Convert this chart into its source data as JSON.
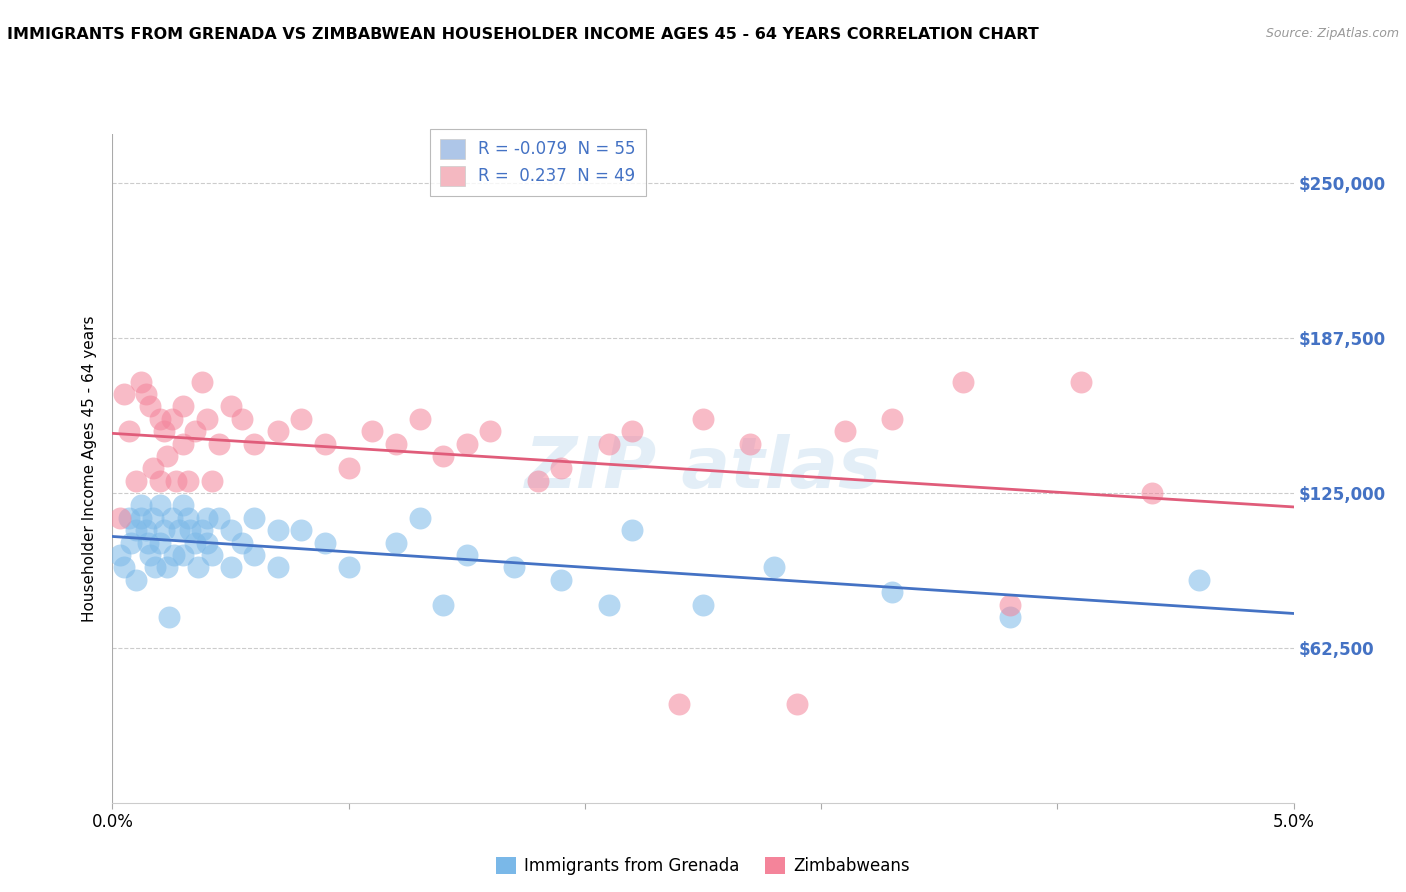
{
  "title": "IMMIGRANTS FROM GRENADA VS ZIMBABWEAN HOUSEHOLDER INCOME AGES 45 - 64 YEARS CORRELATION CHART",
  "source": "Source: ZipAtlas.com",
  "ylabel": "Householder Income Ages 45 - 64 years",
  "yticks": [
    62500,
    125000,
    187500,
    250000
  ],
  "ytick_labels": [
    "$62,500",
    "$125,000",
    "$187,500",
    "$250,000"
  ],
  "legend_entries": [
    {
      "label": "R = -0.079  N = 55",
      "color": "#aec6e8"
    },
    {
      "label": "R =  0.237  N = 49",
      "color": "#f4b8c1"
    }
  ],
  "bottom_legend": [
    "Immigrants from Grenada",
    "Zimbabweans"
  ],
  "blue_color": "#7ab8e8",
  "pink_color": "#f4849a",
  "blue_line_color": "#4472c4",
  "pink_line_color": "#e05c7a",
  "blue_scatter_x": [
    0.0003,
    0.0005,
    0.0007,
    0.0008,
    0.001,
    0.001,
    0.0012,
    0.0012,
    0.0014,
    0.0015,
    0.0016,
    0.0017,
    0.0018,
    0.002,
    0.002,
    0.0022,
    0.0023,
    0.0024,
    0.0025,
    0.0026,
    0.0028,
    0.003,
    0.003,
    0.0032,
    0.0033,
    0.0035,
    0.0036,
    0.0038,
    0.004,
    0.004,
    0.0042,
    0.0045,
    0.005,
    0.005,
    0.0055,
    0.006,
    0.006,
    0.007,
    0.007,
    0.008,
    0.009,
    0.01,
    0.012,
    0.013,
    0.014,
    0.015,
    0.017,
    0.019,
    0.021,
    0.022,
    0.025,
    0.028,
    0.033,
    0.038,
    0.046
  ],
  "blue_scatter_y": [
    100000,
    95000,
    115000,
    105000,
    110000,
    90000,
    120000,
    115000,
    110000,
    105000,
    100000,
    115000,
    95000,
    120000,
    105000,
    110000,
    95000,
    75000,
    115000,
    100000,
    110000,
    120000,
    100000,
    115000,
    110000,
    105000,
    95000,
    110000,
    115000,
    105000,
    100000,
    115000,
    110000,
    95000,
    105000,
    115000,
    100000,
    110000,
    95000,
    110000,
    105000,
    95000,
    105000,
    115000,
    80000,
    100000,
    95000,
    90000,
    80000,
    110000,
    80000,
    95000,
    85000,
    75000,
    90000
  ],
  "pink_scatter_x": [
    0.0003,
    0.0005,
    0.0007,
    0.001,
    0.0012,
    0.0014,
    0.0016,
    0.0017,
    0.002,
    0.002,
    0.0022,
    0.0023,
    0.0025,
    0.0027,
    0.003,
    0.003,
    0.0032,
    0.0035,
    0.0038,
    0.004,
    0.0042,
    0.0045,
    0.005,
    0.0055,
    0.006,
    0.007,
    0.008,
    0.009,
    0.01,
    0.011,
    0.012,
    0.013,
    0.014,
    0.015,
    0.016,
    0.018,
    0.019,
    0.021,
    0.022,
    0.024,
    0.025,
    0.027,
    0.029,
    0.031,
    0.033,
    0.036,
    0.038,
    0.041,
    0.044
  ],
  "pink_scatter_y": [
    115000,
    165000,
    150000,
    130000,
    170000,
    165000,
    160000,
    135000,
    155000,
    130000,
    150000,
    140000,
    155000,
    130000,
    160000,
    145000,
    130000,
    150000,
    170000,
    155000,
    130000,
    145000,
    160000,
    155000,
    145000,
    150000,
    155000,
    145000,
    135000,
    150000,
    145000,
    155000,
    140000,
    145000,
    150000,
    130000,
    135000,
    145000,
    150000,
    40000,
    155000,
    145000,
    40000,
    150000,
    155000,
    170000,
    80000,
    170000,
    125000
  ],
  "xlim": [
    0.0,
    0.05
  ],
  "ylim": [
    0,
    270000
  ],
  "xticks": [
    0.0,
    0.01,
    0.02,
    0.03,
    0.04,
    0.05
  ],
  "xtick_labels_show": [
    "0.0%",
    "",
    "",
    "",
    "",
    "5.0%"
  ]
}
